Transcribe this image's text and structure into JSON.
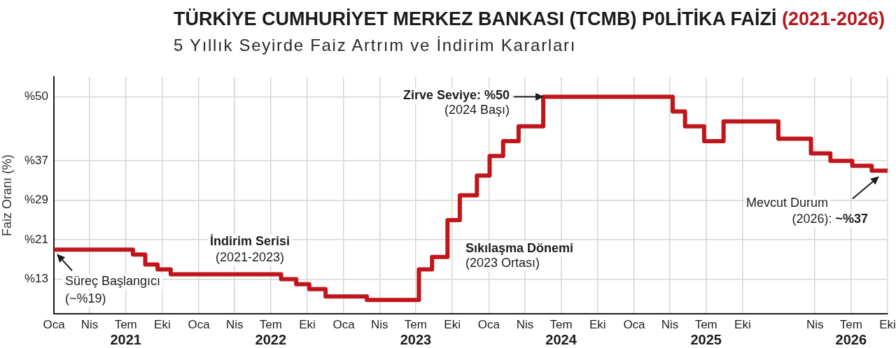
{
  "chart_data": {
    "type": "step",
    "title": "TÜRKİYE CUMHURİYET MERKEZ BANKASI (TCMB) P0LİTİKA FAİZİ (2021-2026)",
    "subtitle": "5 Yıllık Seyirde Faiz Artrım ve İndirim Kararları",
    "ylabel": "Faiz Oranı (%)",
    "x": [
      "2021-01",
      "2021-07-19",
      "2021-08-19",
      "2021-09-19",
      "2021-10-22",
      "2022-07-27",
      "2022-09-03",
      "2022-10-06",
      "2022-11-16",
      "2023-02-28",
      "2023-07-09",
      "2023-08-11",
      "2023-09-19",
      "2023-10-20",
      "2023-12-02",
      "2024-01-03",
      "2024-02-06",
      "2024-03-16",
      "2024-05-17",
      "2025-04-08",
      "2025-05-09",
      "2025-06-26",
      "2025-08-14",
      "2025-12-30",
      "2026-03-22",
      "2026-05-10",
      "2026-07-04",
      "2026-08-22",
      "2026-10"
    ],
    "series": [
      {
        "color": "#c0161b",
        "values": [
          19,
          18,
          16,
          15,
          14,
          13,
          12,
          11,
          9.5,
          8.8,
          15,
          17.5,
          25,
          30,
          34,
          38,
          41,
          44,
          50,
          47,
          44,
          41,
          45,
          41.5,
          38.5,
          37,
          36,
          35,
          35
        ]
      }
    ],
    "xlim": [
      "2021-01",
      "2026-10"
    ],
    "xticks": [
      {
        "value": "2021-01",
        "label": "Oca"
      },
      {
        "value": "2021-04",
        "label": "Nis"
      },
      {
        "value": "2021-07",
        "label": "Tem\n2021"
      },
      {
        "value": "2021-10",
        "label": "Eki"
      },
      {
        "value": "2022-01",
        "label": "Oca"
      },
      {
        "value": "2022-04",
        "label": "Nis"
      },
      {
        "value": "2022-07",
        "label": "Tem\n2022"
      },
      {
        "value": "2022-10",
        "label": "Eki"
      },
      {
        "value": "2023-01",
        "label": "Oca"
      },
      {
        "value": "2023-04",
        "label": "Nis"
      },
      {
        "value": "2023-07",
        "label": "Tem\n2023"
      },
      {
        "value": "2023-10",
        "label": "Eki"
      },
      {
        "value": "2024-01",
        "label": "Oca"
      },
      {
        "value": "2024-04",
        "label": "Nis"
      },
      {
        "value": "2024-07",
        "label": "Tem\n2024"
      },
      {
        "value": "2024-10",
        "label": "Eki"
      },
      {
        "value": "2025-01",
        "label": "Oca"
      },
      {
        "value": "2025-04",
        "label": "Nis"
      },
      {
        "value": "2025-07",
        "label": "Tem\n2025"
      },
      {
        "value": "2025-10",
        "label": "Eki"
      },
      {
        "value": "2026-04",
        "label": "Nis"
      },
      {
        "value": "2026-07",
        "label": "Tem\n2026"
      },
      {
        "value": "2026-10",
        "label": "Eki"
      }
    ],
    "ylim": [
      6,
      54
    ],
    "yticks": [
      {
        "value": 13,
        "label": "%13"
      },
      {
        "value": 21,
        "label": "%21"
      },
      {
        "value": 29,
        "label": "%29"
      },
      {
        "value": 37,
        "label": "%37"
      },
      {
        "value": 50,
        "label": "%50"
      }
    ],
    "grid": true,
    "annotations": [
      {
        "text": "Süreç Başlangıcı\n(~%19)",
        "x": "2021-01",
        "y": 19
      },
      "İndirim Serisi\n(2021-2023)",
      "Sıkılaşma Dönemi\n(2023 Ortası)",
      {
        "text": "Zirve Seviye: %50\n(2024 Başı)",
        "x": "2024-05-17",
        "y": 50
      },
      {
        "text": "Mevcut Durum\n(2026): ~%37",
        "x": "2026-10",
        "y": 35
      }
    ]
  }
}
